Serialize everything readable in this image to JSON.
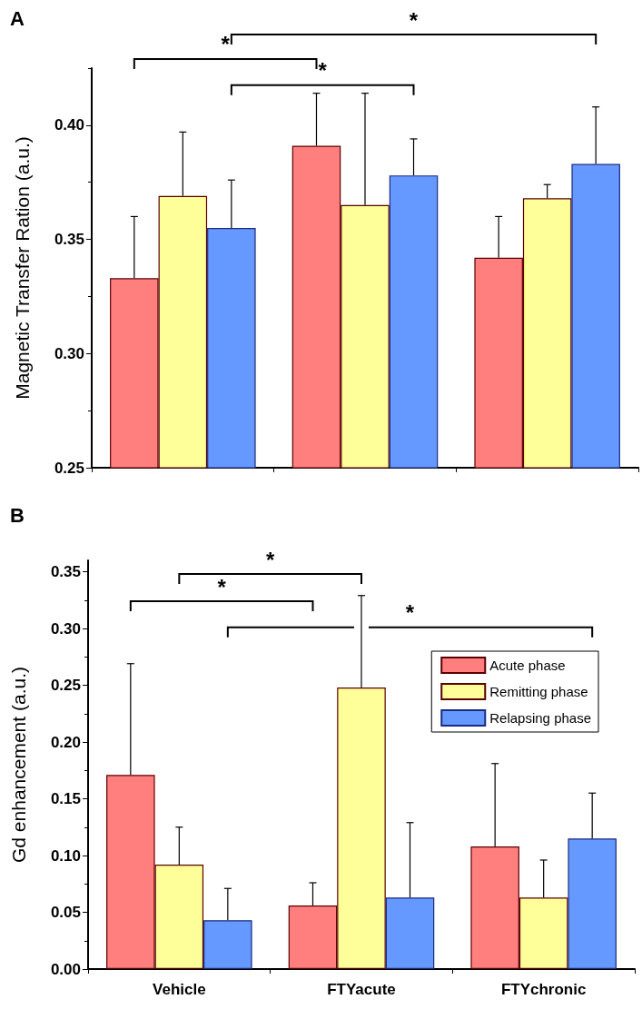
{
  "chart_data": [
    {
      "type": "bar",
      "title": "A",
      "ylabel": "Magnetic Transfer Ration (a.u.)",
      "categories": [
        null,
        null,
        null
      ],
      "tick_labels": "y",
      "legend": false,
      "grid": false,
      "ylim": [
        0.25,
        0.425
      ],
      "yticks": [
        {
          "value": 0.25,
          "label": "0.25"
        },
        {
          "value": 0.3,
          "label": "0.30"
        },
        {
          "value": 0.35,
          "label": "0.35"
        },
        {
          "value": 0.4,
          "label": "0.40"
        }
      ],
      "series": [
        {
          "color": "#ff7f7f",
          "values": [
            0.333,
            0.391,
            0.342
          ],
          "errors": [
            [
              0.333,
              0.36
            ],
            [
              0.391,
              0.414
            ],
            [
              0.342,
              0.36
            ]
          ]
        },
        {
          "color": "#ffff99",
          "values": [
            0.369,
            0.365,
            0.368
          ],
          "errors": [
            [
              0.369,
              0.397
            ],
            [
              0.365,
              0.414
            ],
            [
              0.368,
              0.374
            ]
          ]
        },
        {
          "color": "#6699ff",
          "values": [
            0.355,
            0.378,
            0.383
          ],
          "errors": [
            [
              0.355,
              0.376
            ],
            [
              0.378,
              0.394
            ],
            [
              0.383,
              0.408
            ]
          ]
        }
      ],
      "annotations": [
        "*",
        "*",
        "*"
      ]
    },
    {
      "type": "bar",
      "title": "B",
      "ylabel": "Gd enhancement (a.u.)",
      "categories": [
        "Vehicle",
        "FTYacute",
        "FTYchronic"
      ],
      "legend": "top right",
      "grid": false,
      "ylim": [
        0,
        0.36
      ],
      "yticks": [
        {
          "value": 0,
          "label": "0.00"
        },
        {
          "value": 0.05,
          "label": "0.05"
        },
        {
          "value": 0.1,
          "label": "0.10"
        },
        {
          "value": 0.15,
          "label": "0.15"
        },
        {
          "value": 0.2,
          "label": "0.20"
        },
        {
          "value": 0.25,
          "label": "0.25"
        },
        {
          "value": 0.3,
          "label": "0.30"
        },
        {
          "value": 0.35,
          "label": "0.35"
        }
      ],
      "series": [
        {
          "name": "Acute phase",
          "color": "#ff7f7f",
          "values": [
            0.171,
            0.056,
            0.108
          ],
          "errors": [
            [
              0.171,
              0.269
            ],
            [
              0.056,
              0.076
            ],
            [
              0.108,
              0.181
            ]
          ]
        },
        {
          "name": "Remitting phase",
          "color": "#ffff99",
          "values": [
            0.092,
            0.248,
            0.063
          ],
          "errors": [
            [
              0.092,
              0.125
            ],
            [
              0.248,
              0.329
            ],
            [
              0.063,
              0.096
            ]
          ]
        },
        {
          "name": "Relapsing phase",
          "color": "#6699ff",
          "values": [
            0.043,
            0.063,
            0.115
          ],
          "errors": [
            [
              0.043,
              0.071
            ],
            [
              0.063,
              0.129
            ],
            [
              0.115,
              0.155
            ]
          ]
        }
      ],
      "annotations": [
        "*",
        "*",
        "*"
      ]
    }
  ]
}
